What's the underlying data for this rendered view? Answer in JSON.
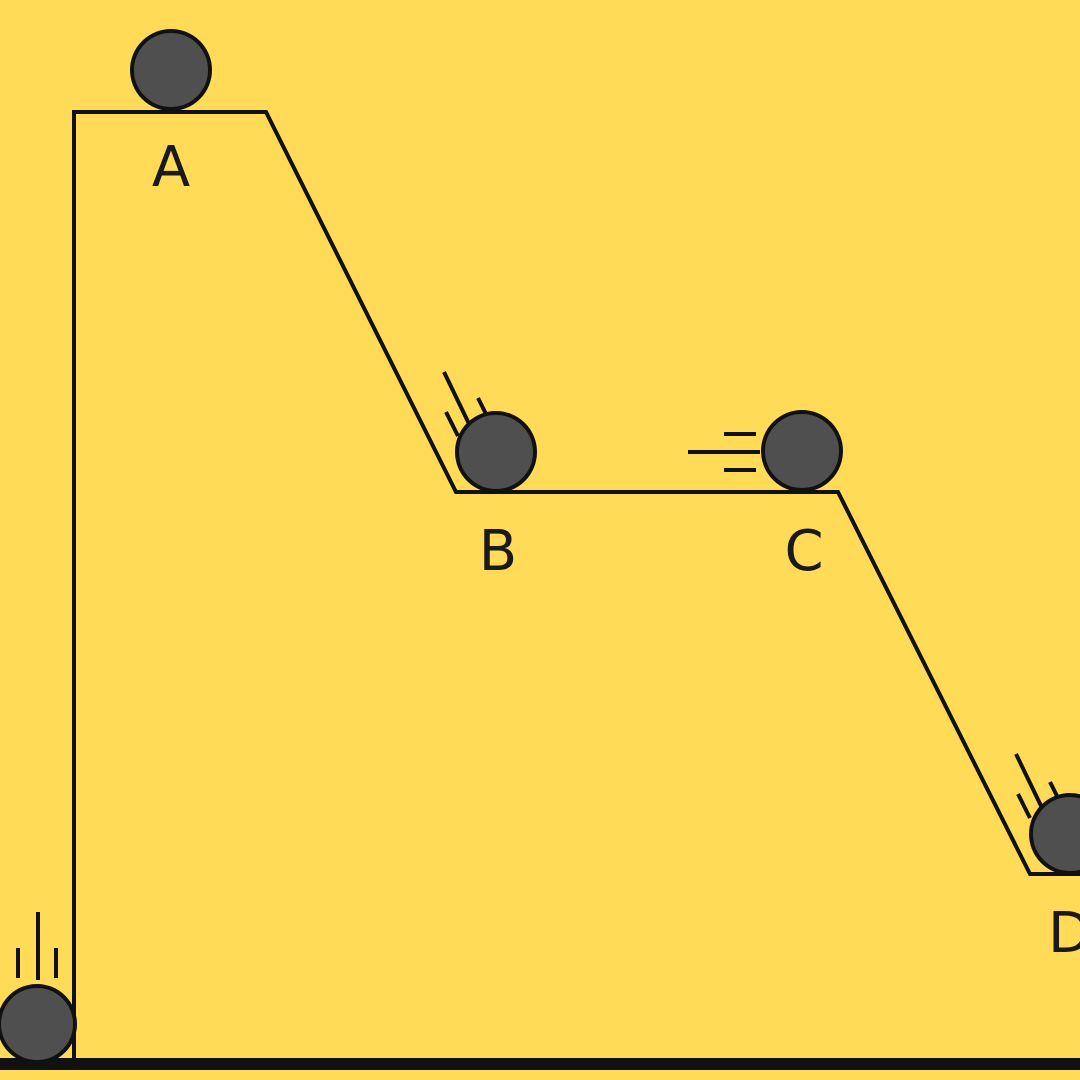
{
  "diagram": {
    "points": [
      {
        "id": "A",
        "label": "A"
      },
      {
        "id": "B",
        "label": "B"
      },
      {
        "id": "C",
        "label": "C"
      },
      {
        "id": "D",
        "label": "D"
      }
    ]
  },
  "colors": {
    "background": "#FFDB58",
    "ball": "#4F4F4F",
    "line": "#111111"
  },
  "icons": {
    "ball": "ball-icon",
    "motion": "motion-lines-icon"
  }
}
